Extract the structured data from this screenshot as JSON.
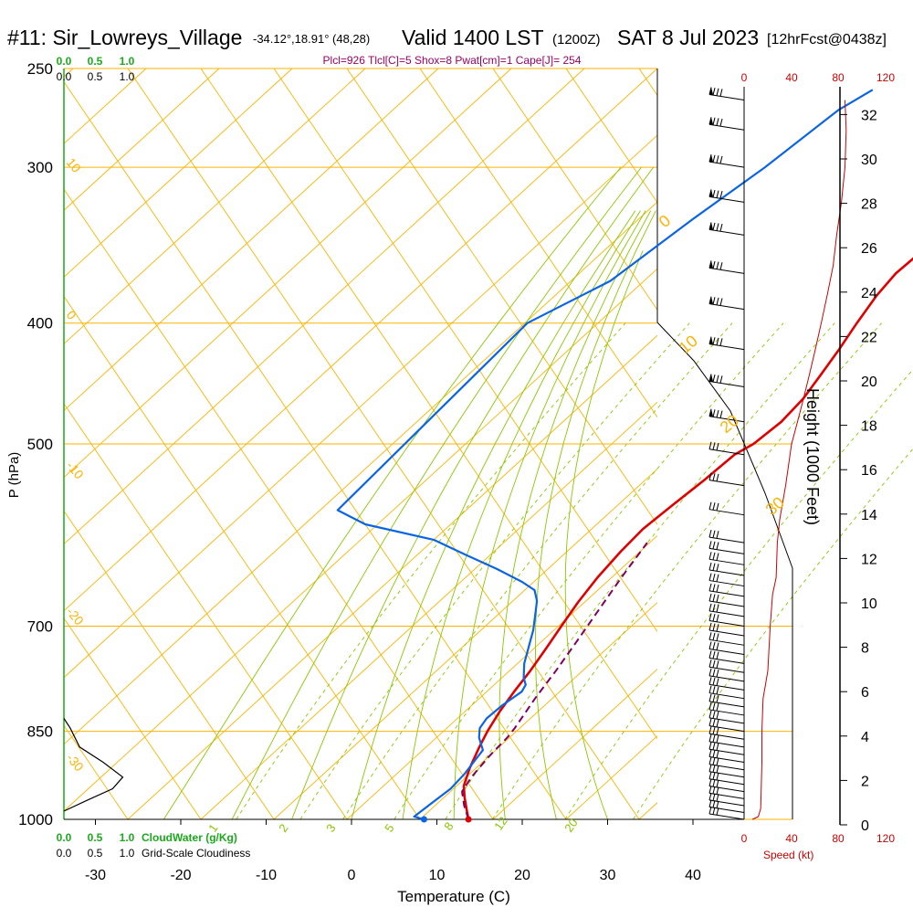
{
  "header": {
    "station": "#11: Sir_Lowreys_Village",
    "coords": "-34.12°,18.91° (48,28)",
    "valid": "Valid 1400 LST",
    "utc": "(1200Z)",
    "date": "SAT 8 Jul 2023",
    "forecast": "[12hrFcst@0438z]",
    "indices": "Plcl=926 Tlcl[C]=5 Shox=8 Pwat[cm]=1 Cape[J]= 254"
  },
  "colors": {
    "isobar": "#ffb300",
    "dry_adiabat": "#ffb300",
    "moist_adiabat": "#88c800",
    "mixing_ratio": "#88c800",
    "temperature": "#e00000",
    "dewpoint": "#0a64e6",
    "parcel": "#800060",
    "cloud": "#000000",
    "speed": "#cc0000",
    "green_label": "#1aaa1a",
    "indices": "#990066"
  },
  "legend": {
    "cloudwater_ticks": [
      "0.0",
      "0.5",
      "1.0"
    ],
    "cloudwater_label": "CloudWater (g/Kg)",
    "cloudiness_ticks": [
      "0.0",
      "0.5",
      "1.0"
    ],
    "cloudiness_label": "Grid-Scale Cloudiness",
    "speed_label": "Speed (kt)",
    "speed_ticks": [
      "0",
      "40",
      "80",
      "120"
    ]
  },
  "chart_data": {
    "type": "line",
    "title": "#11: Sir_Lowreys_Village",
    "xlabel": "Temperature (C)",
    "ylabel": "P (hPa)",
    "y2label": "Height (1000 Feet)",
    "xlim": [
      -35,
      45
    ],
    "ylim": [
      1000,
      250
    ],
    "yscale": "log",
    "x_ticks": [
      -30,
      -20,
      -10,
      0,
      10,
      20,
      30,
      40
    ],
    "p_ticks": [
      1000,
      850,
      700,
      500,
      400,
      300,
      250
    ],
    "height_ticks": [
      0,
      2,
      4,
      6,
      8,
      10,
      12,
      14,
      16,
      18,
      20,
      22,
      24,
      26,
      28,
      30,
      32
    ],
    "grid": true,
    "series": [
      {
        "name": "temperature",
        "points": [
          [
            13.7,
            1000
          ],
          [
            12.5,
            985
          ],
          [
            10.5,
            960
          ],
          [
            9,
            940
          ],
          [
            7.5,
            910
          ],
          [
            6,
            875
          ],
          [
            5,
            850
          ],
          [
            4,
            820
          ],
          [
            3.2,
            790
          ],
          [
            2.5,
            760
          ],
          [
            1.6,
            730
          ],
          [
            0.6,
            700
          ],
          [
            -0.4,
            670
          ],
          [
            -1.2,
            640
          ],
          [
            -1.7,
            610
          ],
          [
            -1.9,
            585
          ],
          [
            -1.4,
            560
          ],
          [
            -0.8,
            535
          ],
          [
            -0.4,
            510
          ],
          [
            0.5,
            500
          ],
          [
            1,
            480
          ],
          [
            0.7,
            460
          ],
          [
            -0.2,
            440
          ],
          [
            -1.2,
            420
          ],
          [
            -2.4,
            400
          ],
          [
            -3.5,
            380
          ],
          [
            -4,
            365
          ],
          [
            -3.7,
            350
          ],
          [
            -2.8,
            330
          ],
          [
            -1.4,
            300
          ],
          [
            -0.3,
            280
          ],
          [
            0.5,
            265
          ]
        ]
      },
      {
        "name": "dewpoint",
        "points": [
          [
            8.5,
            1000
          ],
          [
            7,
            995
          ],
          [
            7.3,
            975
          ],
          [
            7.8,
            945
          ],
          [
            7.6,
            920
          ],
          [
            6.8,
            880
          ],
          [
            4.8,
            860
          ],
          [
            3.7,
            845
          ],
          [
            3.3,
            830
          ],
          [
            3.5,
            810
          ],
          [
            4.1,
            790
          ],
          [
            3.7,
            780
          ],
          [
            2.6,
            770
          ],
          [
            0.9,
            750
          ],
          [
            -0.8,
            725
          ],
          [
            -2.2,
            705
          ],
          [
            -3.9,
            685
          ],
          [
            -5.4,
            668
          ],
          [
            -7,
            655
          ],
          [
            -9.5,
            645
          ],
          [
            -14,
            630
          ],
          [
            -20,
            612
          ],
          [
            -25,
            597
          ],
          [
            -35,
            580
          ],
          [
            -40,
            565
          ],
          [
            -41,
            400
          ],
          [
            -36.5,
            370
          ],
          [
            -34.5,
            330
          ],
          [
            -32.5,
            300
          ],
          [
            -31,
            270
          ],
          [
            -29.5,
            260
          ]
        ]
      },
      {
        "name": "parcel",
        "points": [
          [
            13.7,
            1000
          ],
          [
            11.5,
            975
          ],
          [
            9.5,
            950
          ],
          [
            8.8,
            925
          ],
          [
            8.3,
            890
          ],
          [
            8.1,
            860
          ],
          [
            7.8,
            845
          ],
          [
            6.5,
            800
          ],
          [
            5.5,
            760
          ],
          [
            4.3,
            720
          ],
          [
            3,
            680
          ],
          [
            1.6,
            640
          ],
          [
            0.3,
            600
          ]
        ]
      },
      {
        "name": "cloudiness",
        "points": [
          [
            0,
            830
          ],
          [
            0.08,
            845
          ],
          [
            0.2,
            875
          ],
          [
            0.5,
            900
          ],
          [
            0.75,
            925
          ],
          [
            0.62,
            945
          ],
          [
            0.3,
            965
          ],
          [
            0,
            985
          ]
        ]
      },
      {
        "name": "wind speed",
        "points": [
          [
            7,
            1000
          ],
          [
            12,
            995
          ],
          [
            14,
            980
          ],
          [
            15,
            900
          ],
          [
            15,
            850
          ],
          [
            16,
            800
          ],
          [
            18,
            780
          ],
          [
            20,
            760
          ],
          [
            22,
            700
          ],
          [
            24,
            660
          ],
          [
            27,
            640
          ],
          [
            28,
            600
          ],
          [
            30,
            575
          ],
          [
            35,
            540
          ],
          [
            40,
            500
          ],
          [
            45,
            480
          ],
          [
            50,
            460
          ],
          [
            55,
            440
          ],
          [
            60,
            420
          ],
          [
            65,
            400
          ],
          [
            70,
            380
          ],
          [
            75,
            360
          ],
          [
            78,
            340
          ],
          [
            82,
            320
          ],
          [
            85,
            300
          ],
          [
            86,
            280
          ],
          [
            85,
            265
          ]
        ]
      }
    ],
    "mixing_ratio_labels": [
      "1",
      "2",
      "3",
      "5",
      "8",
      "12",
      "20"
    ],
    "dry_adiabat_labels": [
      "10",
      "0",
      "-10",
      "-20",
      "-30"
    ],
    "moist_adiabat_labels": [
      "0",
      "10",
      "20",
      "30"
    ]
  }
}
